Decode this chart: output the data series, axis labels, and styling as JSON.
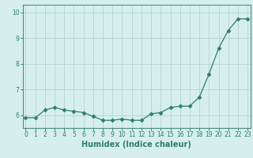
{
  "x": [
    0,
    1,
    2,
    3,
    4,
    5,
    6,
    7,
    8,
    9,
    10,
    11,
    12,
    13,
    14,
    15,
    16,
    17,
    18,
    19,
    20,
    21,
    22,
    23
  ],
  "y": [
    5.9,
    5.9,
    6.2,
    6.3,
    6.2,
    6.15,
    6.1,
    5.95,
    5.8,
    5.8,
    5.85,
    5.8,
    5.8,
    6.05,
    6.1,
    6.3,
    6.35,
    6.35,
    6.7,
    7.6,
    8.6,
    9.3,
    9.75,
    9.75
  ],
  "line_color": "#2d7d6e",
  "marker": "D",
  "marker_size": 2.5,
  "bg_color": "#d6efee",
  "grid_color": "#b8d8d5",
  "xlabel": "Humidex (Indice chaleur)",
  "ylabel": "",
  "ylim": [
    5.5,
    10.3
  ],
  "yticks": [
    6,
    7,
    8,
    9,
    10
  ],
  "xticks": [
    0,
    1,
    2,
    3,
    4,
    5,
    6,
    7,
    8,
    9,
    10,
    11,
    12,
    13,
    14,
    15,
    16,
    17,
    18,
    19,
    20,
    21,
    22,
    23
  ],
  "xlabel_fontsize": 7,
  "tick_fontsize": 5.5,
  "axis_color": "#2d7d6e",
  "spine_color": "#4a9080"
}
